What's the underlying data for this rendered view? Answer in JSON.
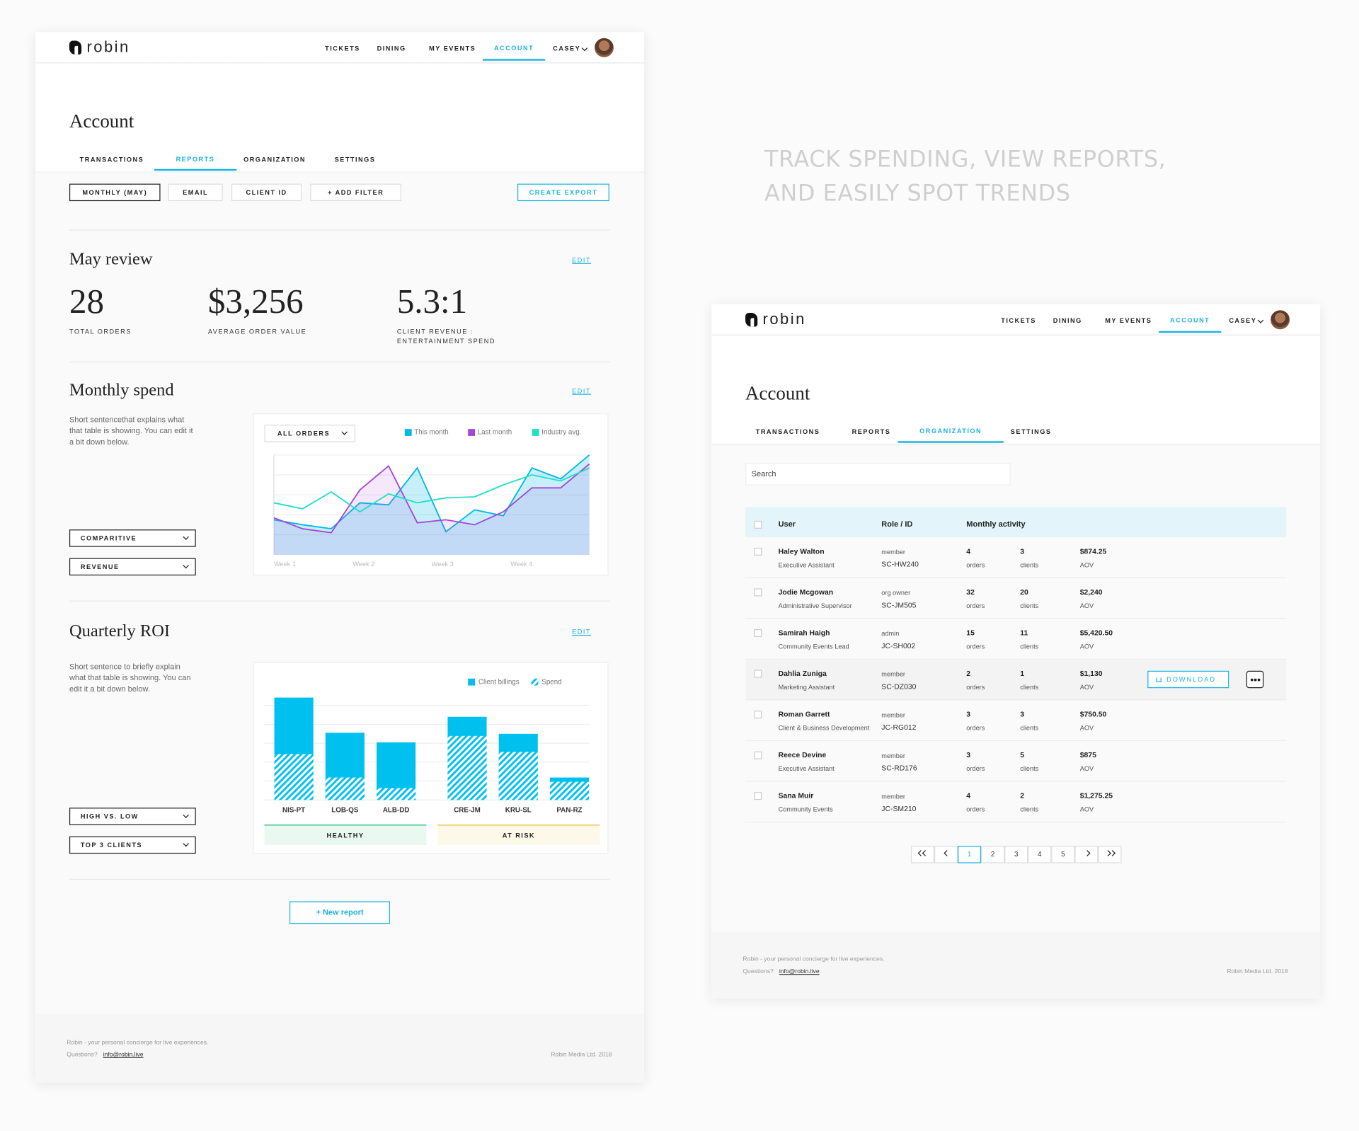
{
  "tagline": [
    "TRACK SPENDING, VIEW REPORTS,",
    "AND EASILY SPOT TRENDS"
  ],
  "nav": {
    "logo": "robin",
    "items": [
      "TICKETS",
      "DINING",
      "MY EVENTS",
      "ACCOUNT"
    ],
    "user": "CASEY"
  },
  "footer": {
    "tagline": "Robin - your personal concierge for live experiences.",
    "questions": "Questions?",
    "email": "info@robin.live",
    "copyright": "Robin Media Ltd. 2018"
  },
  "reports_page": {
    "title": "Account",
    "tabs": [
      "TRANSACTIONS",
      "REPORTS",
      "ORGANIZATION",
      "SETTINGS"
    ],
    "filters": [
      "MONTHLY (MAY)",
      "EMAIL",
      "CLIENT ID",
      "+ ADD FILTER"
    ],
    "export": "CREATE EXPORT",
    "review": {
      "title": "May review",
      "edit": "EDIT",
      "stats": [
        {
          "value": 28,
          "label": "TOTAL ORDERS"
        },
        {
          "value": "$3,256",
          "label": "AVERAGE ORDER VALUE"
        },
        {
          "value": "5.3:1",
          "label": "CLIENT REVENUE : ENTERTAINMENT SPEND"
        }
      ]
    },
    "monthly_spend": {
      "title": "Monthly spend",
      "edit": "EDIT",
      "description": "Short sentencethat explains what that table is showing. You can edit it a bit down below.",
      "dropdowns": [
        "COMPARITIVE",
        "REVENUE"
      ],
      "chart": {
        "type": "line",
        "filter": "ALL ORDERS",
        "x_labels": [
          "Week 1",
          "Week 2",
          "Week 3",
          "Week 4"
        ],
        "ylim": [
          0,
          100
        ],
        "series": [
          {
            "name": "This month",
            "color": "#00b8ea",
            "values": [
              35,
              30,
              26,
              52,
              50,
              87,
              23,
              45,
              39,
              87,
              76,
              100
            ]
          },
          {
            "name": "Last month",
            "color": "#a745d8",
            "values": [
              37,
              26,
              22,
              65,
              89,
              32,
              35,
              30,
              43,
              67,
              67,
              91
            ]
          },
          {
            "name": "Industry avg.",
            "color": "#1fe0c6",
            "values": [
              52,
              46,
              63,
              43,
              61,
              52,
              57,
              58,
              70,
              80,
              74,
              87
            ]
          }
        ]
      }
    },
    "quarterly_roi": {
      "title": "Quarterly ROI",
      "edit": "EDIT",
      "description": "Short sentence to briefly explain what that table is showing. You can edit it a bit down below.",
      "dropdowns": [
        "HIGH VS. LOW",
        "TOP 3 CLIENTS"
      ],
      "chart": {
        "type": "bar",
        "categories": [
          "NIS-PT",
          "LOB-QS",
          "ALB-DD",
          "CRE-JM",
          "KRU-SL",
          "PAN-RZ"
        ],
        "ylim": [
          0,
          100
        ],
        "series": [
          {
            "name": "Client billings",
            "color": "#00c0f0",
            "values": [
              96,
              63,
              54,
              78,
              62,
              21
            ]
          },
          {
            "name": "Spend",
            "color": "#00c0f0",
            "values": [
              43,
              21,
              11,
              60,
              45,
              17
            ]
          }
        ],
        "groups": [
          "HEALTHY",
          "AT RISK"
        ]
      }
    },
    "new_report": "+ New report"
  },
  "organization_page": {
    "title": "Account",
    "tabs": [
      "TRANSACTIONS",
      "REPORTS",
      "ORGANIZATION",
      "SETTINGS"
    ],
    "search": "Search",
    "headers": [
      "User",
      "Role / ID",
      "Monthly activity"
    ],
    "units": [
      "orders",
      "clients",
      "AOV"
    ],
    "rows": [
      {
        "name": "Haley Walton",
        "title": "Executive Assistant",
        "role": "member",
        "id": "SC-HW240",
        "orders": 4,
        "clients": 3,
        "aov": "$874.25"
      },
      {
        "name": "Jodie Mcgowan",
        "title": "Administrative Supervisor",
        "role": "org owner",
        "id": "SC-JM505",
        "orders": 32,
        "clients": 20,
        "aov": "$2,240"
      },
      {
        "name": "Samirah Haigh",
        "title": "Community Events Lead",
        "role": "admin",
        "id": "JC-SH002",
        "orders": 15,
        "clients": 11,
        "aov": "$5,420.50"
      },
      {
        "name": "Dahlia Zuniga",
        "title": "Marketing Assistant",
        "role": "member",
        "id": "SC-DZ030",
        "orders": 2,
        "clients": 1,
        "aov": "$1,130"
      },
      {
        "name": "Roman Garrett",
        "title": "Client & Business Development",
        "role": "member",
        "id": "JC-RG012",
        "orders": 3,
        "clients": 3,
        "aov": "$750.50"
      },
      {
        "name": "Reece Devine",
        "title": "Executive Assistant",
        "role": "member",
        "id": "SC-RD176",
        "orders": 3,
        "clients": 5,
        "aov": "$875"
      },
      {
        "name": "Sana Muir",
        "title": "Community Events",
        "role": "member",
        "id": "JC-SM210",
        "orders": 4,
        "clients": 2,
        "aov": "$1,275.25"
      }
    ],
    "download": "DOWNLOAD",
    "pages": [
      1,
      2,
      3,
      4,
      5
    ]
  }
}
